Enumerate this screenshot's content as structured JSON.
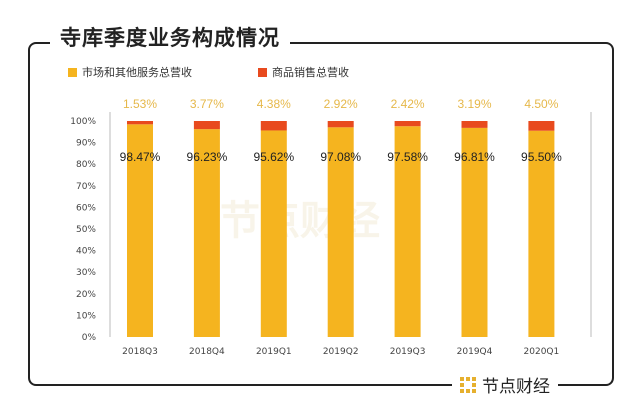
{
  "title": "寺库季度业务构成情况",
  "brand": "节点财经",
  "chart_data": {
    "type": "bar",
    "stacked": true,
    "title": "寺库季度业务构成情况",
    "categories": [
      "2018Q3",
      "2018Q4",
      "2019Q1",
      "2019Q2",
      "2019Q3",
      "2019Q4",
      "2020Q1"
    ],
    "series": [
      {
        "name": "市场和其他服务总营收",
        "color": "#f5b41f",
        "values": [
          98.47,
          96.23,
          95.62,
          97.08,
          97.58,
          96.81,
          95.5
        ],
        "labels": [
          "98.47%",
          "96.23%",
          "95.62%",
          "97.08%",
          "97.58%",
          "96.81%",
          "95.50%"
        ]
      },
      {
        "name": "商品销售总营收",
        "color": "#e84a1e",
        "values": [
          1.53,
          3.77,
          4.38,
          2.92,
          2.42,
          3.19,
          4.5
        ],
        "labels": [
          "1.53%",
          "3.77%",
          "4.38%",
          "2.92%",
          "2.42%",
          "3.19%",
          "4.50%"
        ]
      }
    ],
    "yticks": [
      "0%",
      "10%",
      "20%",
      "30%",
      "40%",
      "50%",
      "60%",
      "70%",
      "80%",
      "90%",
      "100%"
    ],
    "ylim": [
      0,
      100
    ],
    "xlabel": "",
    "ylabel": "",
    "legend": "top-left",
    "top_label_color": "#e6b84a"
  }
}
